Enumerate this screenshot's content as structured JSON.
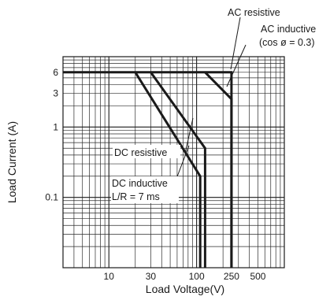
{
  "chart_data": {
    "type": "line",
    "xlabel": "Load Voltage(V)",
    "ylabel": "Load Current (A)",
    "x_scale": "log",
    "y_scale": "log",
    "xlim": [
      3,
      1000
    ],
    "ylim": [
      0.01,
      10
    ],
    "grid": true,
    "x_ticks": [
      {
        "value": 10,
        "label": "10"
      },
      {
        "value": 30,
        "label": "30"
      },
      {
        "value": 100,
        "label": "100"
      },
      {
        "value": 250,
        "label": "250"
      },
      {
        "value": 500,
        "label": "500"
      }
    ],
    "y_ticks": [
      {
        "value": 6,
        "label": "6"
      },
      {
        "value": 3,
        "label": "3"
      },
      {
        "value": 1,
        "label": "1"
      },
      {
        "value": 0.1,
        "label": "0.1"
      }
    ],
    "series": [
      {
        "name": "AC resistive",
        "points": [
          [
            3,
            6
          ],
          [
            250,
            6
          ],
          [
            250,
            0.01
          ]
        ]
      },
      {
        "name": "AC inductive (cos ø = 0.3)",
        "points": [
          [
            125,
            6
          ],
          [
            250,
            2.5
          ],
          [
            250,
            0.01
          ]
        ]
      },
      {
        "name": "DC resistive",
        "points": [
          [
            30,
            6
          ],
          [
            125,
            0.5
          ],
          [
            125,
            0.01
          ]
        ]
      },
      {
        "name": "DC inductive L/R = 7 ms",
        "points": [
          [
            20,
            6
          ],
          [
            110,
            0.2
          ],
          [
            110,
            0.01
          ]
        ]
      }
    ],
    "annotations": [
      {
        "text": "AC resistive",
        "target_series": 0
      },
      {
        "text": "AC inductive",
        "target_series": 1
      },
      {
        "text": "(cos ø = 0.3)",
        "target_series": 1
      },
      {
        "text": "DC resistive",
        "target_series": 2
      },
      {
        "text": "DC inductive",
        "target_series": 3
      },
      {
        "text": "L/R = 7 ms",
        "target_series": 3
      }
    ]
  }
}
